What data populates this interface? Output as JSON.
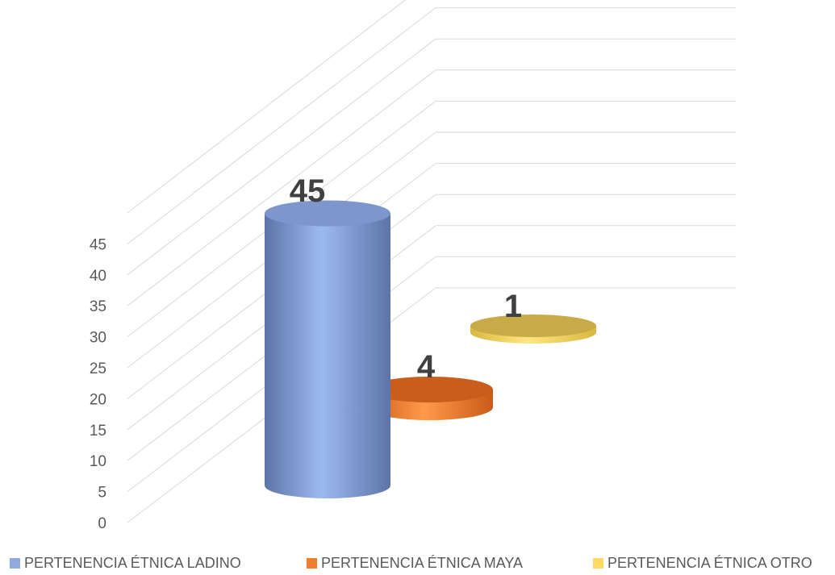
{
  "chart_data": {
    "type": "bar",
    "style": "3d-cylinder",
    "categories": [
      "PERTENENCIA ÉTNICA LADINO",
      "PERTENENCIA ÉTNICA MAYA",
      "PERTENENCIA ÉTNICA OTRO"
    ],
    "values": [
      45,
      4,
      1
    ],
    "colors": [
      "#8faadc",
      "#ed7d31",
      "#ffd966"
    ],
    "yticks": [
      "0",
      "5",
      "10",
      "15",
      "20",
      "25",
      "30",
      "35",
      "40",
      "45"
    ],
    "ylim": [
      0,
      45
    ],
    "grid": true,
    "legend_position": "bottom"
  }
}
